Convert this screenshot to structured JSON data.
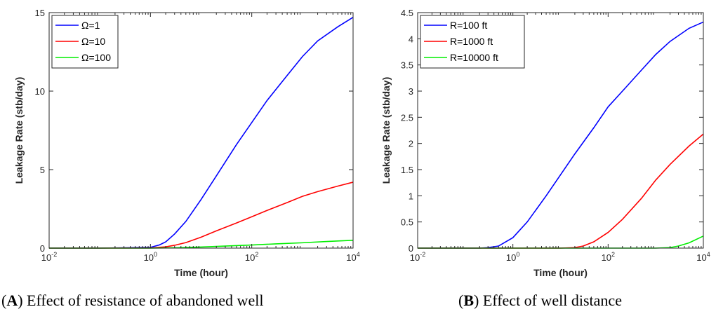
{
  "chart_data": [
    {
      "type": "line",
      "xscale": "log",
      "xlabel": "Time (hour)",
      "ylabel": "Leakage Rate (stb/day)",
      "xlim": [
        0.01,
        10000
      ],
      "ylim": [
        0,
        15
      ],
      "xticks": [
        {
          "value": 0.01,
          "base": "10",
          "exp": "-2"
        },
        {
          "value": 1,
          "base": "10",
          "exp": "0"
        },
        {
          "value": 100,
          "base": "10",
          "exp": "2"
        },
        {
          "value": 10000,
          "base": "10",
          "exp": "4"
        }
      ],
      "yticks": [
        {
          "value": 0,
          "label": "0"
        },
        {
          "value": 5,
          "label": "5"
        },
        {
          "value": 10,
          "label": "10"
        },
        {
          "value": 15,
          "label": "15"
        }
      ],
      "legend_position": "top-left",
      "series": [
        {
          "name": "Ω=1",
          "color": "#0000ff",
          "x": [
            0.01,
            0.1,
            1,
            1.5,
            2,
            3,
            5,
            10,
            20,
            50,
            100,
            200,
            500,
            1000,
            2000,
            5000,
            10000
          ],
          "y": [
            0,
            0,
            0.05,
            0.2,
            0.4,
            0.9,
            1.7,
            3.1,
            4.6,
            6.6,
            8.0,
            9.4,
            11.0,
            12.2,
            13.2,
            14.1,
            14.7
          ]
        },
        {
          "name": "Ω=10",
          "color": "#ff0000",
          "x": [
            0.01,
            0.1,
            1,
            2,
            3,
            5,
            10,
            20,
            50,
            100,
            200,
            500,
            1000,
            2000,
            5000,
            10000
          ],
          "y": [
            0,
            0,
            0.01,
            0.08,
            0.18,
            0.35,
            0.7,
            1.1,
            1.6,
            2.0,
            2.4,
            2.9,
            3.3,
            3.6,
            3.95,
            4.2
          ]
        },
        {
          "name": "Ω=100",
          "color": "#00ee00",
          "x": [
            0.01,
            0.1,
            1,
            3,
            10,
            30,
            100,
            300,
            1000,
            3000,
            10000
          ],
          "y": [
            0,
            0,
            0,
            0.02,
            0.07,
            0.13,
            0.2,
            0.27,
            0.34,
            0.42,
            0.5
          ]
        }
      ],
      "caption_label": "A",
      "caption_text": "Effect of resistance of abandoned well"
    },
    {
      "type": "line",
      "xscale": "log",
      "xlabel": "Time (hour)",
      "ylabel": "Leakage Rate (stb/day)",
      "xlim": [
        0.01,
        10000
      ],
      "ylim": [
        0,
        4.5
      ],
      "xticks": [
        {
          "value": 0.01,
          "base": "10",
          "exp": "-2"
        },
        {
          "value": 1,
          "base": "10",
          "exp": "0"
        },
        {
          "value": 100,
          "base": "10",
          "exp": "2"
        },
        {
          "value": 10000,
          "base": "10",
          "exp": "4"
        }
      ],
      "yticks": [
        {
          "value": 0,
          "label": "0"
        },
        {
          "value": 0.5,
          "label": "0.5"
        },
        {
          "value": 1,
          "label": "1"
        },
        {
          "value": 1.5,
          "label": "1.5"
        },
        {
          "value": 2,
          "label": "2"
        },
        {
          "value": 2.5,
          "label": "2.5"
        },
        {
          "value": 3,
          "label": "3"
        },
        {
          "value": 3.5,
          "label": "3.5"
        },
        {
          "value": 4,
          "label": "4"
        },
        {
          "value": 4.5,
          "label": "4.5"
        }
      ],
      "legend_position": "top-left",
      "series": [
        {
          "name": "R=100 ft",
          "color": "#0000ff",
          "x": [
            0.01,
            0.1,
            0.2,
            0.3,
            0.5,
            1,
            2,
            5,
            10,
            20,
            50,
            100,
            200,
            500,
            1000,
            2000,
            5000,
            10000
          ],
          "y": [
            0,
            0,
            0,
            0.01,
            0.04,
            0.2,
            0.5,
            1.0,
            1.4,
            1.8,
            2.3,
            2.7,
            3.0,
            3.4,
            3.7,
            3.95,
            4.2,
            4.32
          ]
        },
        {
          "name": "R=1000 ft",
          "color": "#ff0000",
          "x": [
            0.01,
            1,
            10,
            20,
            30,
            50,
            100,
            200,
            500,
            1000,
            2000,
            5000,
            10000
          ],
          "y": [
            0,
            0,
            0,
            0.01,
            0.04,
            0.12,
            0.3,
            0.55,
            0.95,
            1.3,
            1.6,
            1.95,
            2.18
          ]
        },
        {
          "name": "R=10000 ft",
          "color": "#00ee00",
          "x": [
            0.01,
            100,
            1000,
            2000,
            3000,
            5000,
            10000
          ],
          "y": [
            0,
            0,
            0,
            0.01,
            0.04,
            0.1,
            0.23
          ]
        }
      ],
      "caption_label": "B",
      "caption_text": "Effect of well distance"
    }
  ]
}
